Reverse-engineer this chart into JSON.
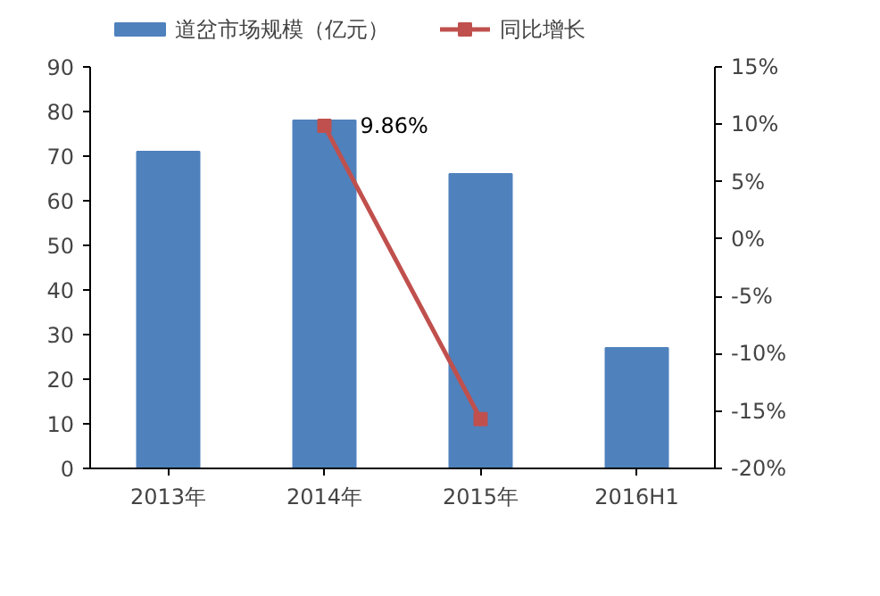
{
  "chart_data": {
    "type": "bar",
    "categories": [
      "2013年",
      "2014年",
      "2015年",
      "2016H1"
    ],
    "series": [
      {
        "name": "道岔市场规模（亿元）",
        "color": "#4f81bd",
        "values": [
          71,
          78,
          66,
          27
        ]
      },
      {
        "name": "同比增长",
        "type": "line",
        "axis": "y2",
        "color": "#c0504d",
        "values": [
          null,
          9.86,
          -15.7,
          null
        ],
        "value_labels": [
          null,
          "9.86%",
          null,
          null
        ]
      }
    ],
    "ylim": [
      0,
      90
    ],
    "yticks": [
      0,
      10,
      20,
      30,
      40,
      50,
      60,
      70,
      80,
      90
    ],
    "y2lim": [
      -20,
      15
    ],
    "y2ticks": [
      {
        "value": -20,
        "label": "-20%"
      },
      {
        "value": -15,
        "label": "-15%"
      },
      {
        "value": -10,
        "label": "-10%"
      },
      {
        "value": -5,
        "label": "-5%"
      },
      {
        "value": 0,
        "label": "0%"
      },
      {
        "value": 5,
        "label": "5%"
      },
      {
        "value": 10,
        "label": "10%"
      },
      {
        "value": 15,
        "label": "15%"
      }
    ],
    "marker": "square",
    "legend": "top",
    "grid": false
  }
}
